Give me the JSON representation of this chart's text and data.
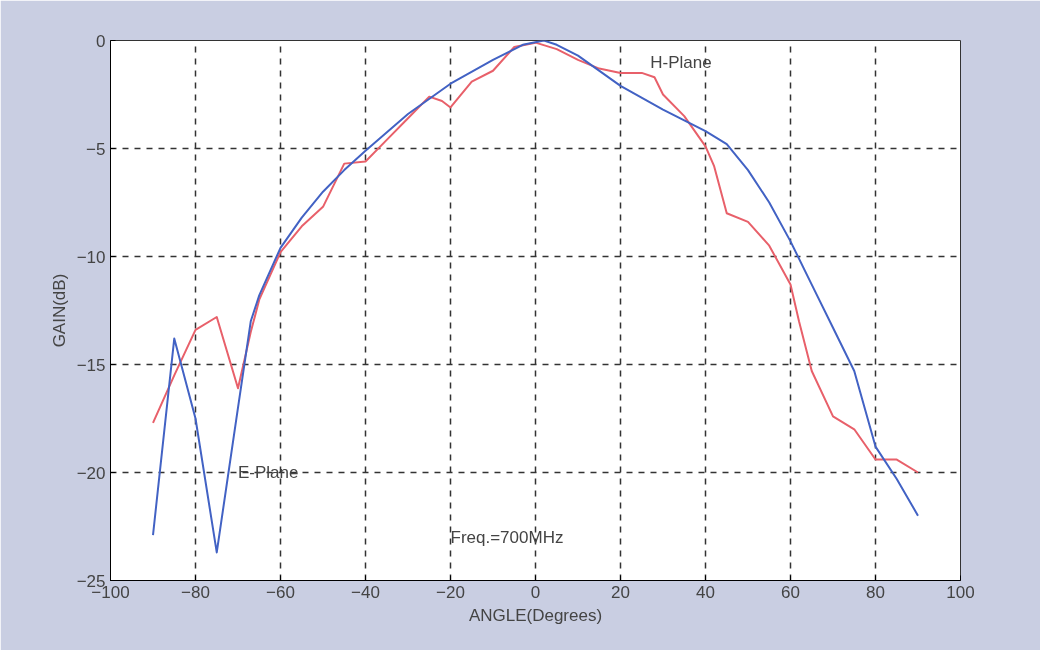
{
  "chart_data": {
    "type": "line",
    "xlabel": "ANGLE(Degrees)",
    "ylabel": "GAIN(dB)",
    "xlim": [
      -100,
      100
    ],
    "xticks": [
      -100,
      -80,
      -60,
      -40,
      -20,
      0,
      20,
      40,
      60,
      80,
      100
    ],
    "ylim": [
      -25,
      0
    ],
    "yticks": [
      -25,
      -20,
      -15,
      -10,
      -5,
      0
    ],
    "grid": true,
    "marker": "none",
    "line_style": "solid",
    "series": [
      {
        "color": "#e8606a",
        "x": [
          -90,
          -85,
          -80,
          -75,
          -70,
          -67,
          -65,
          -60,
          -55,
          -50,
          -45,
          -40,
          -35,
          -30,
          -25,
          -22,
          -20,
          -15,
          -10,
          -5,
          0,
          5,
          10,
          15,
          20,
          25,
          28,
          30,
          35,
          40,
          42,
          45,
          50,
          55,
          60,
          62,
          65,
          70,
          75,
          80,
          85,
          90
        ],
        "values": [
          -17.7,
          -15.5,
          -13.4,
          -12.8,
          -16.1,
          -13.5,
          -12,
          -9.8,
          -8.6,
          -7.7,
          -5.7,
          -5.6,
          -4.6,
          -3.6,
          -2.6,
          -2.8,
          -3.1,
          -1.9,
          -1.4,
          -0.3,
          -0.1,
          -0.4,
          -0.9,
          -1.3,
          -1.5,
          -1.5,
          -1.7,
          -2.5,
          -3.5,
          -4.9,
          -5.8,
          -8.0,
          -8.4,
          -9.5,
          -11.3,
          -13.0,
          -15.3,
          -17.4,
          -18.0,
          -19.4,
          -19.4,
          -20.0
        ]
      },
      {
        "color": "#4262c4",
        "x": [
          -90,
          -85,
          -80,
          -75,
          -70,
          -67,
          -65,
          -60,
          -55,
          -50,
          -45,
          -40,
          -30,
          -20,
          -10,
          -3,
          2,
          5,
          10,
          20,
          30,
          40,
          45,
          50,
          55,
          60,
          65,
          70,
          75,
          80,
          85,
          90
        ],
        "values": [
          -22.9,
          -13.8,
          -17.5,
          -23.7,
          -17.0,
          -13,
          -11.8,
          -9.6,
          -8.2,
          -7.0,
          -6.0,
          -5.1,
          -3.4,
          -2.0,
          -0.9,
          -0.2,
          0,
          -0.2,
          -0.7,
          -2.1,
          -3.2,
          -4.2,
          -4.8,
          -6.0,
          -7.5,
          -9.3,
          -11.3,
          -13.3,
          -15.3,
          -18.8,
          -20.3,
          -22.0
        ]
      }
    ],
    "annotations": [
      "E-Plane",
      "H-Plane",
      "Freq.=700MHz"
    ]
  }
}
